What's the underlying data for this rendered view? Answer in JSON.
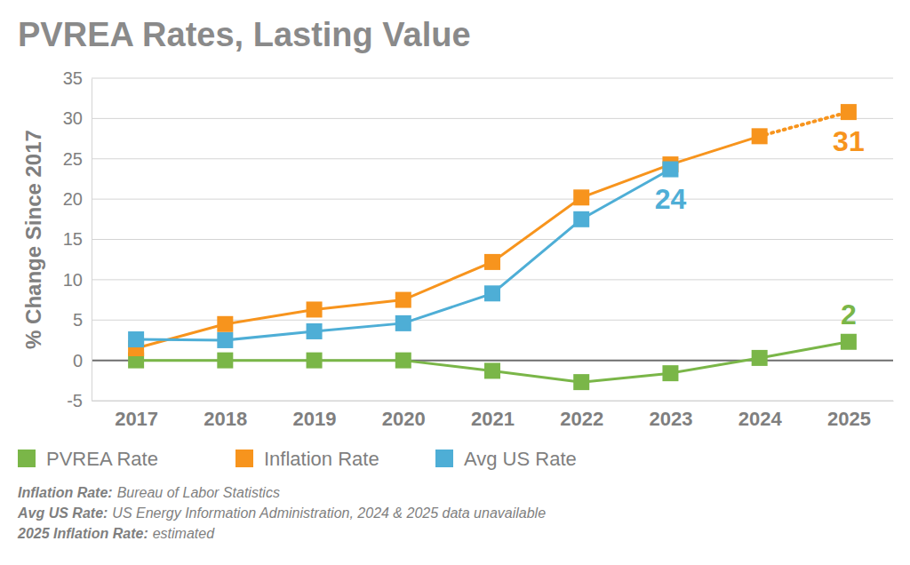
{
  "chart_data": {
    "type": "line",
    "title": "PVREA Rates, Lasting Value",
    "y_label": "% Change Since 2017",
    "categories": [
      "2017",
      "2018",
      "2019",
      "2020",
      "2021",
      "2022",
      "2023",
      "2024",
      "2025"
    ],
    "ylim": [
      -5,
      35
    ],
    "yticks": [
      -5,
      0,
      5,
      10,
      15,
      20,
      25,
      30,
      35
    ],
    "grid": true,
    "legend": "bottom",
    "marker": "square",
    "series": [
      {
        "name": "PVREA Rate",
        "color": "#7ab648",
        "line_style": "solid",
        "values": [
          0,
          0,
          0,
          0,
          -1.3,
          -2.7,
          -1.6,
          0.3,
          2.3
        ],
        "value_labels": [
          null,
          null,
          null,
          null,
          null,
          null,
          null,
          null,
          "2"
        ]
      },
      {
        "name": "Inflation Rate",
        "color": "#f7941d",
        "line_style": "solid",
        "estimated": [
          "2025"
        ],
        "values": [
          1.5,
          4.5,
          6.3,
          7.5,
          12.2,
          20.2,
          24.3,
          27.8,
          30.8
        ],
        "value_labels": [
          null,
          null,
          null,
          null,
          null,
          null,
          null,
          null,
          "31"
        ]
      },
      {
        "name": "Avg US Rate",
        "color": "#4eaed6",
        "line_style": "solid",
        "values": [
          2.6,
          2.5,
          3.6,
          4.6,
          8.3,
          17.5,
          23.7,
          null,
          null
        ],
        "value_labels": [
          null,
          null,
          null,
          null,
          null,
          null,
          "24",
          null,
          null
        ]
      }
    ],
    "notes": [
      {
        "label": "Inflation Rate:",
        "text": "Bureau of Labor Statistics"
      },
      {
        "label": "Avg US Rate:",
        "text": "US Energy Information Administration, 2024 & 2025 data unavailable"
      },
      {
        "label": "2025 Inflation Rate:",
        "text": "estimated"
      }
    ]
  }
}
